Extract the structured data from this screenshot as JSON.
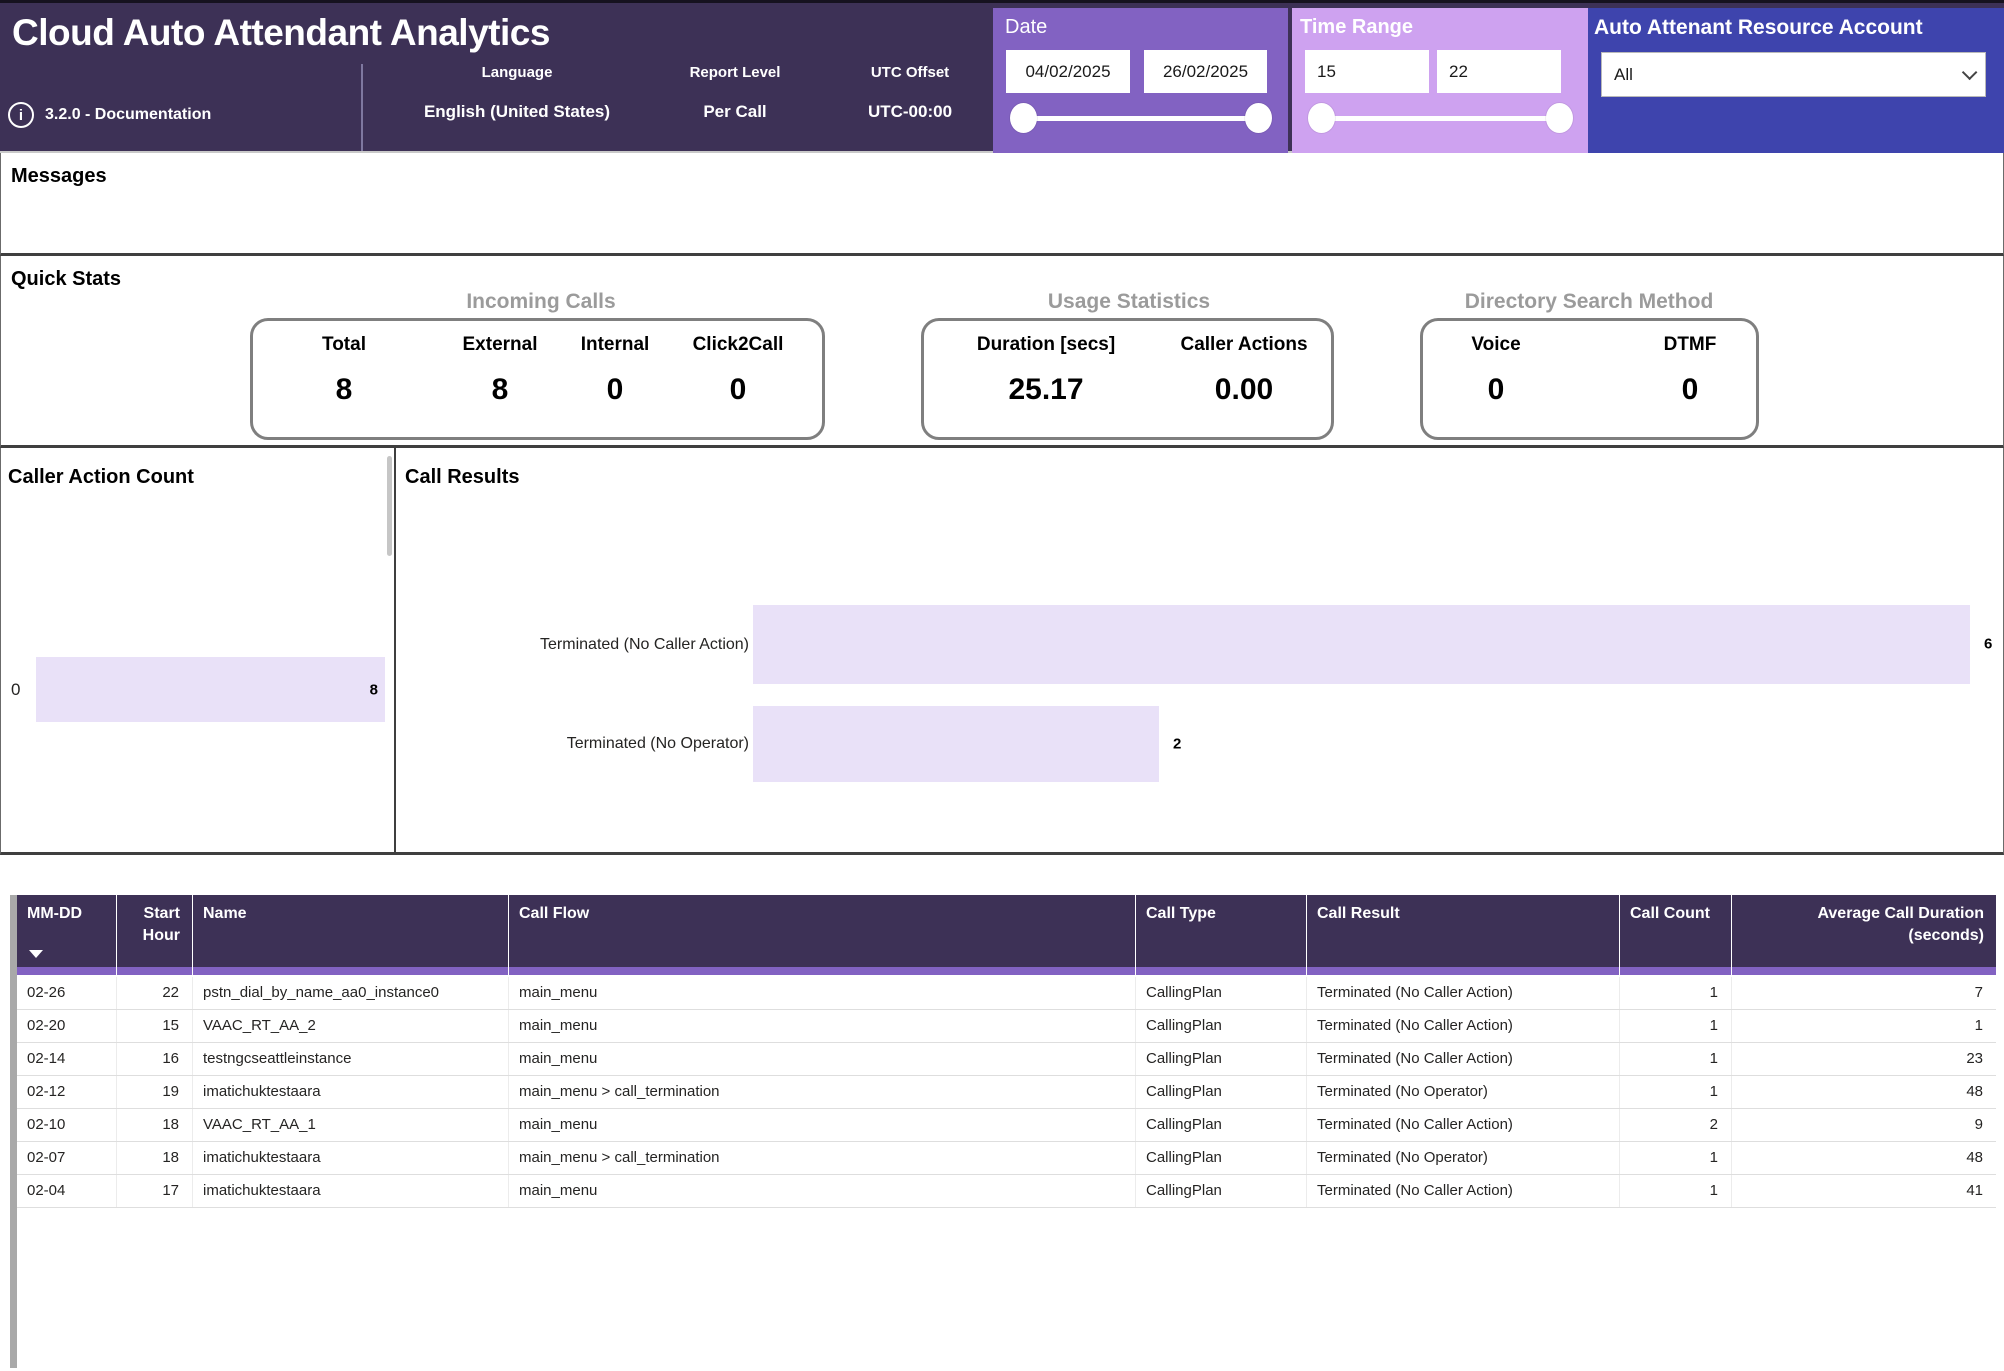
{
  "header": {
    "title": "Cloud Auto Attendant Analytics",
    "version": "3.2.0 - Documentation",
    "fields": [
      {
        "label": "Language",
        "value": "English (United States)"
      },
      {
        "label": "Report Level",
        "value": "Per Call"
      },
      {
        "label": "UTC Offset",
        "value": "UTC-00:00"
      }
    ]
  },
  "filters": {
    "date": {
      "title": "Date",
      "start": "04/02/2025",
      "end": "26/02/2025"
    },
    "time": {
      "title": "Time Range",
      "start": "15",
      "end": "22"
    },
    "account": {
      "title": "Auto Attenant Resource Account",
      "value": "All"
    }
  },
  "messages": {
    "title": "Messages"
  },
  "quick_stats": {
    "title": "Quick Stats",
    "groups": [
      {
        "title": "Incoming Calls",
        "stats": [
          {
            "label": "Total",
            "value": "8"
          },
          {
            "label": "External",
            "value": "8"
          },
          {
            "label": "Internal",
            "value": "0"
          },
          {
            "label": "Click2Call",
            "value": "0"
          }
        ]
      },
      {
        "title": "Usage Statistics",
        "stats": [
          {
            "label": "Duration [secs]",
            "value": "25.17"
          },
          {
            "label": "Caller Actions",
            "value": "0.00"
          }
        ]
      },
      {
        "title": "Directory Search Method",
        "stats": [
          {
            "label": "Voice",
            "value": "0"
          },
          {
            "label": "DTMF",
            "value": "0"
          }
        ]
      }
    ]
  },
  "chart_data": [
    {
      "type": "bar",
      "orientation": "horizontal",
      "title": "Caller Action Count",
      "categories": [
        "0"
      ],
      "values": [
        8
      ],
      "xlim": [
        0,
        8
      ],
      "grid": false,
      "legend": false,
      "value_labels": "inside-end"
    },
    {
      "type": "bar",
      "orientation": "horizontal",
      "title": "Call Results",
      "categories": [
        "Terminated (No Caller Action)",
        "Terminated (No Operator)"
      ],
      "values": [
        6,
        2
      ],
      "xlim": [
        0,
        6
      ],
      "grid": false,
      "legend": false,
      "value_labels": "outside-end"
    }
  ],
  "table": {
    "columns": [
      "MM-DD",
      "Start Hour",
      "Name",
      "Call Flow",
      "Call Type",
      "Call Result",
      "Call Count",
      "Average Call Duration (seconds)"
    ],
    "sort": {
      "column": "MM-DD",
      "direction": "descending"
    },
    "rows": [
      [
        "02-26",
        "22",
        "pstn_dial_by_name_aa0_instance0",
        "main_menu",
        "CallingPlan",
        "Terminated (No Caller Action)",
        "1",
        "7"
      ],
      [
        "02-20",
        "15",
        "VAAC_RT_AA_2",
        "main_menu",
        "CallingPlan",
        "Terminated (No Caller Action)",
        "1",
        "1"
      ],
      [
        "02-14",
        "16",
        "testngcseattleinstance",
        "main_menu",
        "CallingPlan",
        "Terminated (No Caller Action)",
        "1",
        "23"
      ],
      [
        "02-12",
        "19",
        "imatichuktestaara",
        "main_menu > call_termination",
        "CallingPlan",
        "Terminated (No Operator)",
        "1",
        "48"
      ],
      [
        "02-10",
        "18",
        "VAAC_RT_AA_1",
        "main_menu",
        "CallingPlan",
        "Terminated (No Caller Action)",
        "2",
        "9"
      ],
      [
        "02-07",
        "18",
        "imatichuktestaara",
        "main_menu > call_termination",
        "CallingPlan",
        "Terminated (No Operator)",
        "1",
        "48"
      ],
      [
        "02-04",
        "17",
        "imatichuktestaara",
        "main_menu",
        "CallingPlan",
        "Terminated (No Caller Action)",
        "1",
        "41"
      ]
    ]
  },
  "icons": {
    "info": "circled-i",
    "dropdown_chevron": "chevron-down",
    "sort": "triangle-down"
  },
  "colors": {
    "header_bg": "#3D3156",
    "date_panel": "#8262C2",
    "time_panel": "#CEA2F0",
    "account_panel": "#3E44AD",
    "bar_fill": "#E9E1F8",
    "table_accent_strip": "#8262C2",
    "group_title": "#9B9B9B"
  }
}
